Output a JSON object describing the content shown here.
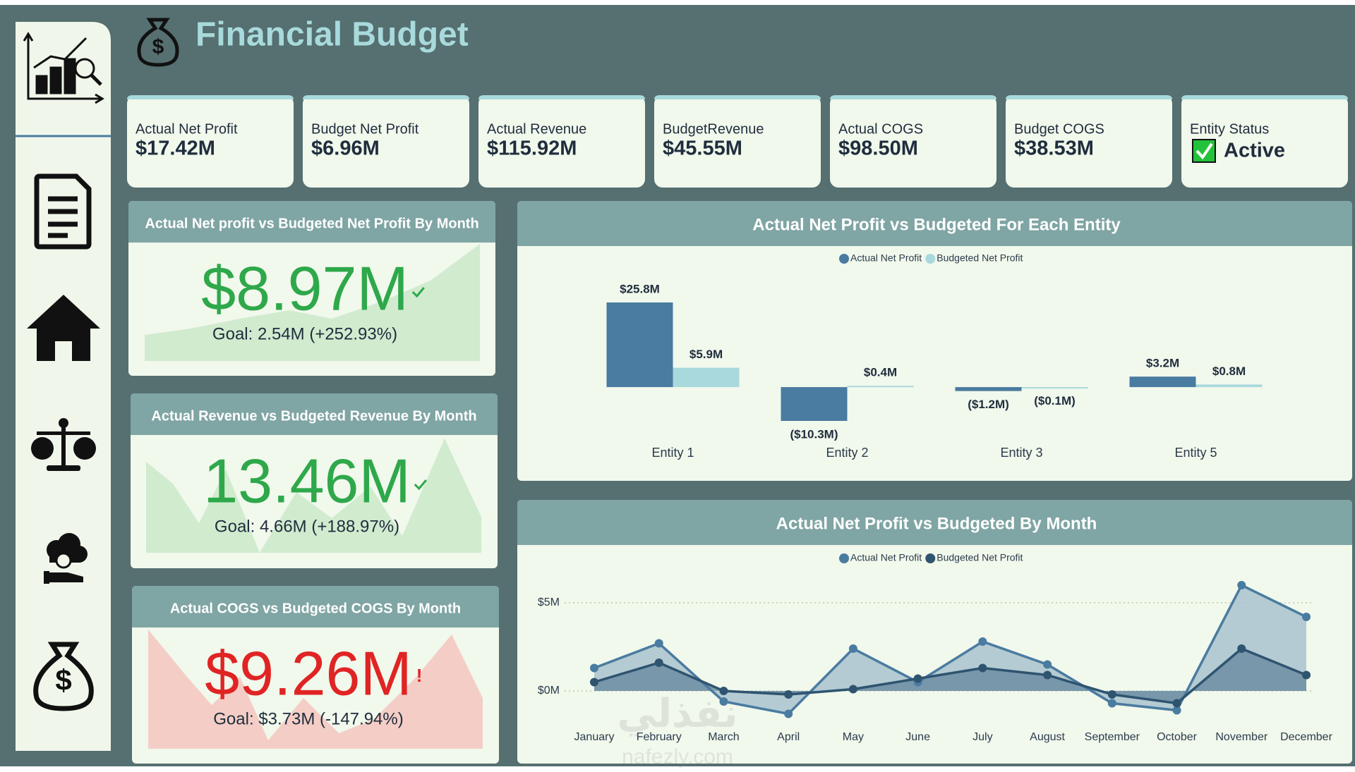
{
  "header": {
    "title": "Financial Budget"
  },
  "kpis": [
    {
      "label": "Actual Net Profit",
      "value": "$17.42M"
    },
    {
      "label": "Budget Net Profit",
      "value": "$6.96M"
    },
    {
      "label": "Actual Revenue",
      "value": "$115.92M"
    },
    {
      "label": "BudgetRevenue",
      "value": "$45.55M"
    },
    {
      "label": "Actual COGS",
      "value": "$98.50M"
    },
    {
      "label": "Budget COGS",
      "value": "$38.53M"
    },
    {
      "label": "Entity Status",
      "value": "Active"
    }
  ],
  "cards": [
    {
      "title": "Actual Net profit vs Budgeted Net Profit By Month",
      "value": "$8.97M",
      "goal": "Goal: 2.54M (+252.93%)",
      "color": "#2ea84a"
    },
    {
      "title": "Actual Revenue vs Budgeted Revenue By Month",
      "value": "13.46M",
      "goal": "Goal: 4.66M (+188.97%)",
      "color": "#2ea84a"
    },
    {
      "title": "Actual COGS vs Budgeted COGS By Month",
      "value": "$9.26M",
      "goal": "Goal: $3.73M (-147.94%)",
      "color": "#e02424",
      "indicator": "!"
    }
  ],
  "chart_data": [
    {
      "type": "bar",
      "title": "Actual Net Profit vs Budgeted For Each Entity",
      "categories": [
        "Entity 1",
        "Entity 2",
        "Entity 3",
        "Entity 5"
      ],
      "series": [
        {
          "name": "Actual Net Profit",
          "color": "#4a7ba0",
          "values": [
            25.8,
            -10.3,
            -1.2,
            3.2
          ],
          "value_labels": [
            "$25.8M",
            "($10.3M)",
            "($1.2M)",
            "$3.2M"
          ]
        },
        {
          "name": "Budgeted Net Profit",
          "color": "#a9d9dd",
          "values": [
            5.9,
            0.4,
            -0.1,
            0.8
          ],
          "value_labels": [
            "$5.9M",
            "$0.4M",
            "($0.1M)",
            "$0.8M"
          ]
        }
      ]
    },
    {
      "type": "line",
      "title": "Actual Net Profit vs Budgeted By Month",
      "categories": [
        "January",
        "February",
        "March",
        "April",
        "May",
        "June",
        "July",
        "August",
        "September",
        "October",
        "November",
        "December"
      ],
      "series": [
        {
          "name": "Actual Net Profit",
          "color": "#4a7ba0",
          "values": [
            1.3,
            2.7,
            -0.6,
            -1.3,
            2.4,
            0.5,
            2.8,
            1.5,
            -0.7,
            -1.1,
            6.0,
            4.2
          ]
        },
        {
          "name": "Budgeted Net Profit",
          "color": "#2f5470",
          "values": [
            0.5,
            1.6,
            0.0,
            -0.2,
            0.1,
            0.7,
            1.3,
            0.9,
            -0.2,
            -0.7,
            2.4,
            0.9
          ]
        }
      ],
      "ylim": [
        -1.5,
        6.5
      ],
      "yticks": [
        {
          "value": 5,
          "label": "$5M"
        },
        {
          "value": 0,
          "label": "$0M"
        }
      ],
      "grid": true
    }
  ],
  "watermark": [
    "نفذلي",
    "nafezly.com"
  ]
}
